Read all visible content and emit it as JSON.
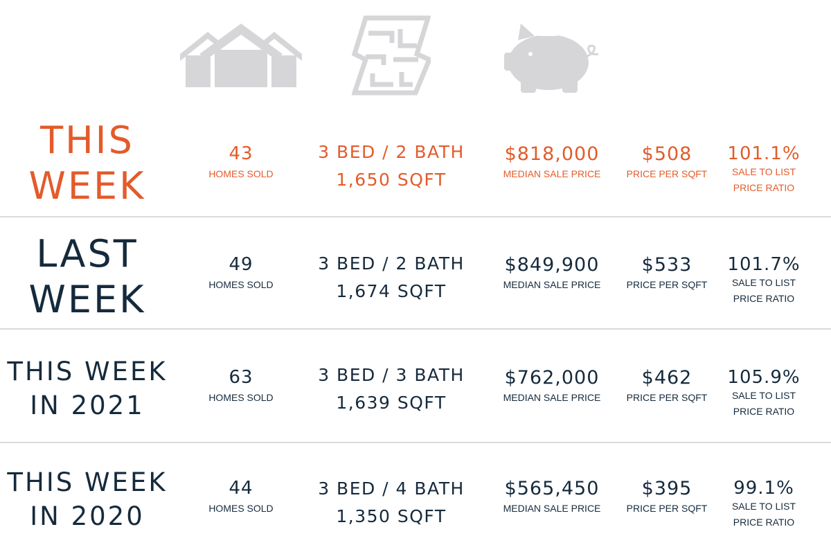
{
  "colors": {
    "accent": "#e35b2a",
    "primary": "#152a3c",
    "icon_gray": "#d6d6d8",
    "divider": "#d9dadc"
  },
  "icons": [
    "houses-icon",
    "floor-plan-icon",
    "piggy-bank-icon"
  ],
  "labels": {
    "homes_sold": "HOMES SOLD",
    "median_sale_price": "MEDIAN SALE PRICE",
    "price_per_sqft": "PRICE PER SQFT",
    "ratio_line1": "SALE TO LIST",
    "ratio_line2": "PRICE RATIO"
  },
  "rows": [
    {
      "title_line1": "THIS",
      "title_line2": "WEEK",
      "homes_sold": "43",
      "bed_bath": "3 BED / 2 BATH",
      "sqft": "1,650 SQFT",
      "median_price": "$818,000",
      "price_per_sqft": "$508",
      "sale_to_list": "101.1%"
    },
    {
      "title_line1": "LAST",
      "title_line2": "WEEK",
      "homes_sold": "49",
      "bed_bath": "3 BED / 2 BATH",
      "sqft": "1,674 SQFT",
      "median_price": "$849,900",
      "price_per_sqft": "$533",
      "sale_to_list": "101.7%"
    },
    {
      "title_line1": "THIS WEEK",
      "title_line2": "IN 2021",
      "homes_sold": "63",
      "bed_bath": "3 BED / 3 BATH",
      "sqft": "1,639 SQFT",
      "median_price": "$762,000",
      "price_per_sqft": "$462",
      "sale_to_list": "105.9%"
    },
    {
      "title_line1": "THIS WEEK",
      "title_line2": "IN 2020",
      "homes_sold": "44",
      "bed_bath": "3 BED / 4 BATH",
      "sqft": "1,350 SQFT",
      "median_price": "$565,450",
      "price_per_sqft": "$395",
      "sale_to_list": "99.1%"
    }
  ]
}
